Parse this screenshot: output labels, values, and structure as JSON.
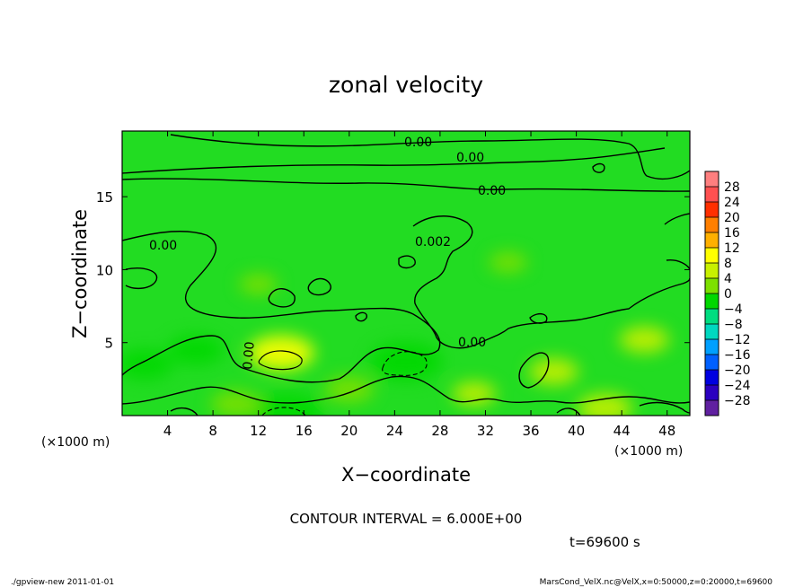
{
  "chart_data": {
    "type": "heatmap",
    "title": "zonal velocity",
    "xlabel": "X−coordinate",
    "ylabel": "Z−coordinate",
    "x_unit_left": "(×1000 m)",
    "x_unit_right": "(×1000 m)",
    "xlim": [
      0,
      50
    ],
    "ylim": [
      0,
      19.5
    ],
    "x_ticks": [
      4,
      8,
      12,
      16,
      20,
      24,
      28,
      32,
      36,
      40,
      44,
      48
    ],
    "y_ticks": [
      5,
      10,
      15
    ],
    "contour_interval_text": "CONTOUR INTERVAL = 6.000E+00",
    "contour_labels": [
      "0.00",
      "0.00",
      "0.00",
      "0.00",
      "0.002",
      "0.00",
      "0.00"
    ],
    "time_text": "t=69600 s",
    "colorbar": {
      "levels": [
        28,
        24,
        20,
        16,
        12,
        8,
        4,
        0,
        -4,
        -8,
        -12,
        -16,
        -20,
        -24,
        -28
      ],
      "level_labels": [
        "28",
        "24",
        "20",
        "16",
        "12",
        "8",
        "4",
        "0",
        "−4",
        "−8",
        "−12",
        "−16",
        "−20",
        "−24",
        "−28"
      ],
      "colors": [
        "#ff7f7f",
        "#ff5050",
        "#ff2f00",
        "#ff7f00",
        "#ffb000",
        "#ffff00",
        "#c8f000",
        "#7de000",
        "#00d800",
        "#00dd80",
        "#00d8c0",
        "#00a0ff",
        "#0060ff",
        "#0000e0",
        "#2b00c0",
        "#6020a0"
      ]
    },
    "blobs": [
      {
        "x": 14.0,
        "z": 4.3,
        "value": 6
      },
      {
        "x": 25.0,
        "z": 3.7,
        "value": -7
      },
      {
        "x": 14.5,
        "z": 0.2,
        "value": -7
      },
      {
        "x": 6.5,
        "z": 4.5,
        "value": -4
      },
      {
        "x": 2.0,
        "z": 3.5,
        "value": -4
      },
      {
        "x": 10.0,
        "z": 0.8,
        "value": -3
      },
      {
        "x": 20.0,
        "z": 1.8,
        "value": -3
      },
      {
        "x": 38.0,
        "z": 3.0,
        "value": 3
      },
      {
        "x": 46.0,
        "z": 5.2,
        "value": 3
      },
      {
        "x": 42.5,
        "z": 0.5,
        "value": 4
      },
      {
        "x": 31.0,
        "z": 1.5,
        "value": 2
      },
      {
        "x": 34.0,
        "z": 10.5,
        "value": -1
      },
      {
        "x": 12.0,
        "z": 9.0,
        "value": -1
      }
    ]
  },
  "footer": {
    "left": "./gpview-new  2011-01-01",
    "right": "MarsCond_VelX.nc@VelX,x=0:50000,z=0:20000,t=69600"
  }
}
